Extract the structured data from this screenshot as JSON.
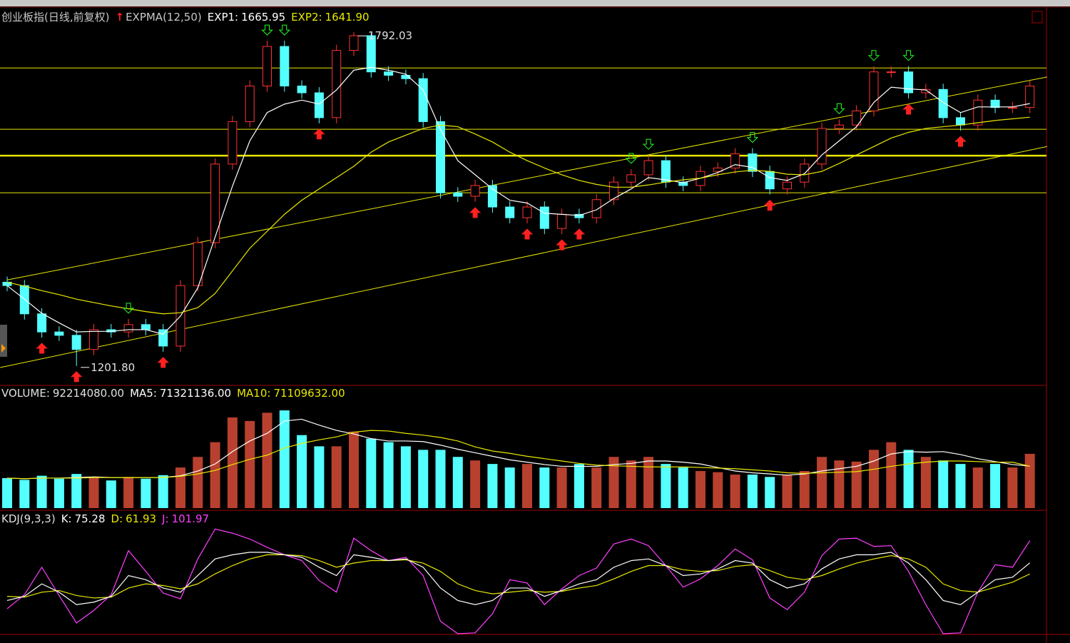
{
  "chart_data": [
    {
      "type": "candlestick",
      "title": "创业板指(日线,前复权)",
      "indicator": "EXPMA(12,50)",
      "open": [
        1350,
        1344,
        1294,
        1262,
        1256,
        1231,
        1266,
        1262,
        1275,
        1266,
        1237,
        1344,
        1420,
        1559,
        1634,
        1697,
        1767,
        1697,
        1685,
        1641,
        1760,
        1786,
        1722,
        1716,
        1710,
        1634,
        1508,
        1502,
        1521,
        1483,
        1464,
        1483,
        1445,
        1470,
        1464,
        1496,
        1527,
        1540,
        1565,
        1527,
        1521,
        1546,
        1552,
        1577,
        1546,
        1515,
        1527,
        1559,
        1622,
        1628,
        1653,
        1722,
        1722,
        1685,
        1691,
        1641,
        1628,
        1672,
        1659,
        1659
      ],
      "high": [
        1360,
        1354,
        1304,
        1272,
        1266,
        1276,
        1276,
        1285,
        1285,
        1276,
        1354,
        1430,
        1569,
        1644,
        1707,
        1777,
        1777,
        1707,
        1695,
        1770,
        1792.03,
        1790,
        1732,
        1726,
        1720,
        1644,
        1518,
        1531,
        1531,
        1493,
        1493,
        1493,
        1480,
        1480,
        1506,
        1537,
        1550,
        1575,
        1575,
        1537,
        1556,
        1562,
        1587,
        1587,
        1556,
        1537,
        1569,
        1632,
        1638,
        1663,
        1732,
        1732,
        1732,
        1701,
        1701,
        1651,
        1682,
        1682,
        1669,
        1707
      ],
      "low": [
        1334,
        1284,
        1252,
        1246,
        1201.8,
        1221,
        1252,
        1252,
        1256,
        1227,
        1227,
        1334,
        1410,
        1549,
        1624,
        1687,
        1687,
        1675,
        1631,
        1631,
        1750,
        1712,
        1706,
        1700,
        1624,
        1498,
        1492,
        1492,
        1473,
        1454,
        1454,
        1435,
        1435,
        1454,
        1454,
        1486,
        1517,
        1530,
        1517,
        1511,
        1511,
        1536,
        1542,
        1536,
        1505,
        1505,
        1517,
        1549,
        1612,
        1618,
        1643,
        1712,
        1675,
        1675,
        1631,
        1618,
        1618,
        1649,
        1649,
        1649
      ],
      "close": [
        1344,
        1294,
        1262,
        1256,
        1231,
        1266,
        1262,
        1275,
        1266,
        1237,
        1344,
        1420,
        1559,
        1634,
        1697,
        1767,
        1697,
        1685,
        1641,
        1760,
        1786,
        1722,
        1716,
        1710,
        1634,
        1508,
        1502,
        1521,
        1483,
        1464,
        1483,
        1445,
        1470,
        1464,
        1496,
        1527,
        1540,
        1565,
        1527,
        1521,
        1546,
        1552,
        1577,
        1546,
        1515,
        1527,
        1559,
        1622,
        1628,
        1653,
        1722,
        1722,
        1685,
        1691,
        1641,
        1628,
        1672,
        1659,
        1659,
        1697
      ],
      "up_color": "#ff3232",
      "down_color": "#54ffff",
      "ylim": [
        1170,
        1834
      ],
      "series": [
        {
          "name": "EXP1:",
          "color": "#ffffff",
          "legend_value": "1665.95",
          "values": [
            1344,
            1320,
            1295,
            1278,
            1262,
            1263,
            1263,
            1266,
            1266,
            1258,
            1290,
            1340,
            1430,
            1520,
            1600,
            1650,
            1665,
            1672,
            1665,
            1690,
            1725,
            1730,
            1725,
            1718,
            1690,
            1620,
            1565,
            1540,
            1515,
            1495,
            1490,
            1472,
            1470,
            1468,
            1478,
            1498,
            1515,
            1535,
            1531,
            1526,
            1534,
            1544,
            1558,
            1553,
            1535,
            1530,
            1542,
            1575,
            1600,
            1625,
            1668,
            1695,
            1692,
            1690,
            1668,
            1650,
            1660,
            1660,
            1660,
            1665.95
          ]
        },
        {
          "name": "EXP2:",
          "color": "#e8e800",
          "legend_value": "1641.90",
          "values": [
            1350,
            1343,
            1335,
            1328,
            1320,
            1314,
            1308,
            1303,
            1298,
            1294,
            1296,
            1305,
            1330,
            1370,
            1410,
            1440,
            1470,
            1495,
            1515,
            1535,
            1555,
            1580,
            1598,
            1610,
            1622,
            1628,
            1625,
            1612,
            1598,
            1580,
            1565,
            1552,
            1540,
            1530,
            1523,
            1518,
            1518,
            1522,
            1527,
            1531,
            1534,
            1540,
            1545,
            1548,
            1546,
            1541,
            1540,
            1546,
            1560,
            1575,
            1590,
            1605,
            1615,
            1622,
            1625,
            1628,
            1632,
            1636,
            1639,
            1641.9
          ]
        }
      ],
      "levels": [
        1728.9,
        1620.5,
        1573.8,
        1508.2
      ],
      "level_color": "#e8e800",
      "trend_lines": [
        {
          "from": [
            0,
            1354
          ],
          "to": [
            60,
            1713
          ]
        },
        {
          "from": [
            -0.4,
            1199
          ],
          "to": [
            60,
            1590
          ]
        }
      ],
      "buy_signals": [
        2,
        4,
        9,
        18,
        27,
        30,
        32,
        33,
        44,
        52,
        55
      ],
      "sell_signals": [
        7,
        15,
        16,
        36,
        37,
        43,
        48,
        50,
        52
      ],
      "annotations": [
        {
          "index": 20,
          "label": "1792.03"
        },
        {
          "index": 4,
          "label": "1201.80"
        }
      ]
    },
    {
      "type": "bar",
      "title": "VOLUME:",
      "title_value": "92214080.00",
      "ylim": [
        0,
        200000000
      ],
      "values": [
        51000000,
        48000000,
        55000000,
        50000000,
        58000000,
        52000000,
        47000000,
        53000000,
        50000000,
        56000000,
        69000000,
        87000000,
        112000000,
        154000000,
        148000000,
        162000000,
        166000000,
        124000000,
        105000000,
        105000000,
        130000000,
        118000000,
        112000000,
        105000000,
        99000000,
        99000000,
        87000000,
        81000000,
        75000000,
        69000000,
        75000000,
        69000000,
        69000000,
        75000000,
        69000000,
        87000000,
        81000000,
        87000000,
        75000000,
        69000000,
        63000000,
        61000000,
        57000000,
        57000000,
        53000000,
        57000000,
        63000000,
        87000000,
        81000000,
        79000000,
        99000000,
        112000000,
        99000000,
        87000000,
        81000000,
        75000000,
        69000000,
        75000000,
        69000000,
        92214080
      ],
      "up_color": "#b8402e",
      "down_color": "#54ffff",
      "series": [
        {
          "name": "MA5:",
          "color": "#ffffff",
          "legend_value": "71321136.00",
          "values": [
            51000000,
            50000000,
            51000000,
            51000000,
            52000000,
            53000000,
            52000000,
            52000000,
            52000000,
            52000000,
            55000000,
            63000000,
            75000000,
            96000000,
            114000000,
            127000000,
            148000000,
            151000000,
            141000000,
            132000000,
            126000000,
            118000000,
            114000000,
            114000000,
            113000000,
            107000000,
            100000000,
            94000000,
            88000000,
            82000000,
            78000000,
            74000000,
            71000000,
            71000000,
            71000000,
            74000000,
            76000000,
            80000000,
            80000000,
            78000000,
            75000000,
            69000000,
            63000000,
            60000000,
            58000000,
            56000000,
            58000000,
            63000000,
            67000000,
            71000000,
            80000000,
            92000000,
            96000000,
            95000000,
            96000000,
            91000000,
            84000000,
            79000000,
            74000000,
            71321136
          ]
        },
        {
          "name": "MA10:",
          "color": "#e8e800",
          "legend_value": "71109632.00",
          "values": [
            51000000,
            50000000,
            51000000,
            51000000,
            51000000,
            52000000,
            52000000,
            52000000,
            52000000,
            52000000,
            54000000,
            58000000,
            64000000,
            74000000,
            83000000,
            90000000,
            102000000,
            110000000,
            116000000,
            121000000,
            129000000,
            132000000,
            131000000,
            127000000,
            124000000,
            120000000,
            114000000,
            104000000,
            97000000,
            93000000,
            88000000,
            84000000,
            80000000,
            76000000,
            73000000,
            72000000,
            71000000,
            70000000,
            70000000,
            70000000,
            69000000,
            68000000,
            67000000,
            65000000,
            63000000,
            60000000,
            59000000,
            60000000,
            61000000,
            62000000,
            66000000,
            71000000,
            75000000,
            78000000,
            80000000,
            80000000,
            79000000,
            78000000,
            78000000,
            71109632
          ]
        }
      ]
    },
    {
      "type": "line",
      "title": "KDJ(9,3,3)",
      "ylim": [
        -10,
        136
      ],
      "series": [
        {
          "name": "K:",
          "color": "#ffffff",
          "legend_value": "75.28",
          "values": [
            30,
            35,
            50,
            40,
            25,
            28,
            35,
            60,
            55,
            45,
            40,
            60,
            80,
            85,
            88,
            88,
            85,
            82,
            70,
            60,
            85,
            82,
            78,
            80,
            70,
            45,
            30,
            25,
            30,
            45,
            45,
            35,
            42,
            50,
            55,
            70,
            78,
            80,
            72,
            60,
            62,
            68,
            78,
            75,
            55,
            45,
            50,
            68,
            80,
            85,
            85,
            88,
            75,
            55,
            30,
            25,
            40,
            55,
            58,
            75.28
          ]
        },
        {
          "name": "D:",
          "color": "#e8e800",
          "legend_value": "61.93",
          "values": [
            35,
            34,
            40,
            42,
            36,
            33,
            34,
            45,
            50,
            48,
            44,
            50,
            62,
            72,
            80,
            85,
            85,
            84,
            78,
            70,
            75,
            78,
            78,
            79,
            75,
            65,
            50,
            42,
            38,
            40,
            42,
            40,
            41,
            45,
            48,
            56,
            65,
            72,
            72,
            67,
            65,
            66,
            71,
            73,
            66,
            58,
            55,
            60,
            68,
            75,
            80,
            84,
            80,
            70,
            50,
            42,
            40,
            46,
            52,
            61.93
          ]
        },
        {
          "name": "J:",
          "color": "#ff40ff",
          "legend_value": "101.97",
          "values": [
            20,
            37,
            70,
            36,
            3,
            18,
            37,
            90,
            65,
            39,
            32,
            80,
            116,
            111,
            104,
            94,
            85,
            78,
            54,
            40,
            105,
            90,
            78,
            82,
            60,
            5,
            -10,
            -9,
            14,
            55,
            51,
            25,
            44,
            60,
            69,
            98,
            104,
            96,
            72,
            46,
            56,
            72,
            92,
            79,
            33,
            19,
            40,
            84,
            104,
            105,
            95,
            96,
            65,
            25,
            -10,
            -9,
            40,
            73,
            70,
            101.97
          ]
        }
      ]
    }
  ]
}
